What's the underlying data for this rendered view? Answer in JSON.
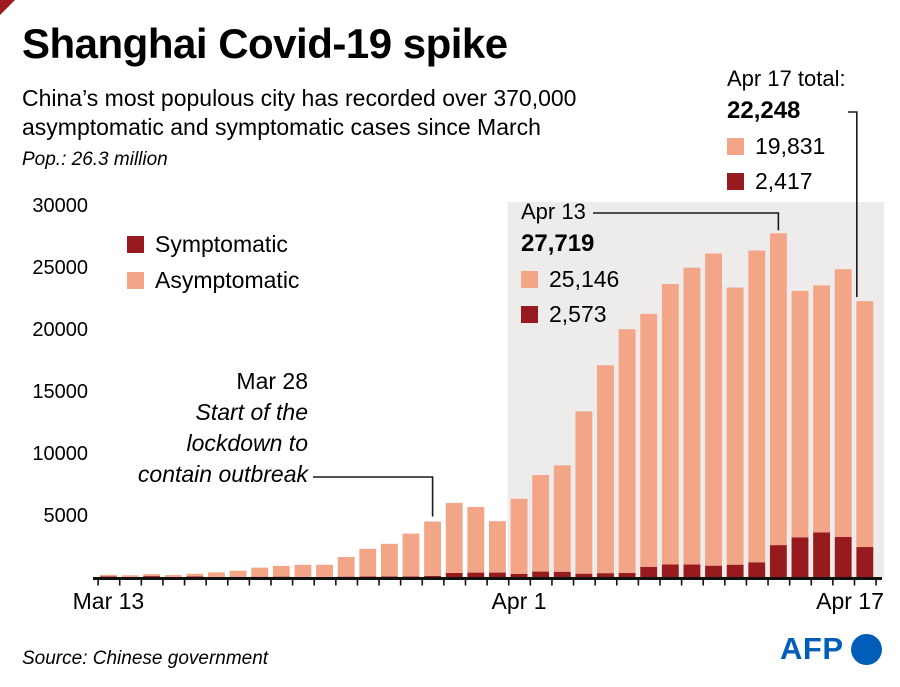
{
  "header": {
    "title": "Shanghai Covid-19 spike",
    "subtitle_line1": "China’s most populous city has recorded over 370,000",
    "subtitle_line2": "asymptomatic and symptomatic cases since March",
    "population": "Pop.: 26.3 million"
  },
  "legend": {
    "symptomatic": "Symptomatic",
    "asymptomatic": "Asymptomatic"
  },
  "annotation_apr17": {
    "label": "Apr 17 total:",
    "total": "22,248",
    "asymptomatic": "19,831",
    "symptomatic": "2,417"
  },
  "annotation_apr13": {
    "label": "Apr 13",
    "total": "27,719",
    "asymptomatic": "25,146",
    "symptomatic": "2,573"
  },
  "annotation_mar28": {
    "label": "Mar 28",
    "line1": "Start of the",
    "line2": "lockdown to",
    "line3": "contain outbreak"
  },
  "footer": {
    "source": "Source: Chinese government",
    "logo_text": "AFP"
  },
  "colors": {
    "symptomatic": "#971b1e",
    "asymptomatic": "#f3a588",
    "shade": "#eeecea",
    "axis": "#111111",
    "afp_blue": "#005eb8",
    "corner_red": "#9e1b1e"
  },
  "chart_data": {
    "type": "bar",
    "stacked": true,
    "title": "Shanghai daily Covid-19 cases, Mar 13 - Apr 17",
    "xlabel": "",
    "ylabel": "",
    "ylim": [
      0,
      30000
    ],
    "yticks": [
      5000,
      10000,
      15000,
      20000,
      25000,
      30000
    ],
    "grid": false,
    "legend_position": "top-left-inside",
    "shaded_from": "Apr 1",
    "shaded_to": "Apr 17",
    "xtick_labels": [
      "Mar 13",
      "Apr 1",
      "Apr 17"
    ],
    "x": [
      "Mar 13",
      "Mar 14",
      "Mar 15",
      "Mar 16",
      "Mar 17",
      "Mar 18",
      "Mar 19",
      "Mar 20",
      "Mar 21",
      "Mar 22",
      "Mar 23",
      "Mar 24",
      "Mar 25",
      "Mar 26",
      "Mar 27",
      "Mar 28",
      "Mar 29",
      "Mar 30",
      "Mar 31",
      "Apr 1",
      "Apr 2",
      "Apr 3",
      "Apr 4",
      "Apr 5",
      "Apr 6",
      "Apr 7",
      "Apr 8",
      "Apr 9",
      "Apr 10",
      "Apr 11",
      "Apr 12",
      "Apr 13",
      "Apr 14",
      "Apr 15",
      "Apr 16",
      "Apr 17"
    ],
    "series": [
      {
        "name": "Symptomatic",
        "color": "#971b1e",
        "values": [
          41,
          9,
          75,
          8,
          57,
          8,
          17,
          24,
          31,
          4,
          4,
          29,
          38,
          45,
          50,
          96,
          326,
          355,
          358,
          260,
          438,
          425,
          268,
          311,
          322,
          824,
          1015,
          1006,
          914,
          994,
          1189,
          2573,
          3200,
          3590,
          3238,
          2417
        ]
      },
      {
        "name": "Asymptomatic",
        "color": "#f3a588",
        "values": [
          130,
          130,
          157,
          150,
          203,
          366,
          492,
          734,
          865,
          977,
          979,
          1580,
          2231,
          2631,
          3450,
          4381,
          5656,
          5298,
          4144,
          6051,
          7788,
          8581,
          13086,
          16766,
          19660,
          20398,
          22609,
          23937,
          25173,
          22348,
          25141,
          25146,
          19872,
          19923,
          21582,
          19831
        ]
      }
    ],
    "annotated_bars": {
      "mar28": "Mar 28",
      "apr13": "Apr 13",
      "apr17": "Apr 17"
    }
  }
}
